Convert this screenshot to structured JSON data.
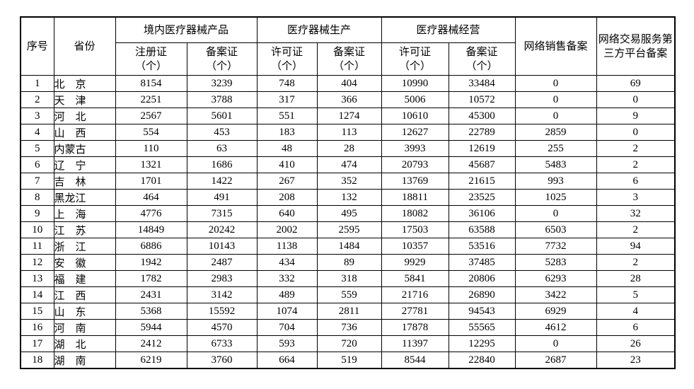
{
  "colors": {
    "background": "#ffffff",
    "border": "#000000",
    "text": "#000000"
  },
  "table": {
    "header": {
      "no": "序号",
      "province": "省份",
      "groups": [
        "境内医疗器械产品",
        "医疗器械生产",
        "医疗器械经营"
      ],
      "sub": [
        "注册证\n（个）",
        "备案证\n（个）",
        "许可证\n（个）",
        "备案证\n（个）",
        "许可证\n（个）",
        "备案证\n（个）"
      ],
      "net_sales": "网络销售备案",
      "net_platform": "网络交易服务第三方平台备案"
    },
    "rows": [
      {
        "no": "1",
        "province": "北　京",
        "values": [
          "8154",
          "3239",
          "748",
          "404",
          "10990",
          "33484",
          "0",
          "69"
        ]
      },
      {
        "no": "2",
        "province": "天　津",
        "values": [
          "2251",
          "3788",
          "317",
          "366",
          "5006",
          "10572",
          "0",
          "0"
        ]
      },
      {
        "no": "3",
        "province": "河　北",
        "values": [
          "2567",
          "5601",
          "551",
          "1274",
          "10610",
          "45300",
          "0",
          "9"
        ]
      },
      {
        "no": "4",
        "province": "山　西",
        "values": [
          "554",
          "453",
          "183",
          "113",
          "12627",
          "22789",
          "2859",
          "0"
        ]
      },
      {
        "no": "5",
        "province": "内蒙古",
        "values": [
          "110",
          "63",
          "48",
          "28",
          "3993",
          "12619",
          "255",
          "2"
        ]
      },
      {
        "no": "6",
        "province": "辽　宁",
        "values": [
          "1321",
          "1686",
          "410",
          "474",
          "20793",
          "45687",
          "5483",
          "2"
        ]
      },
      {
        "no": "7",
        "province": "吉　林",
        "values": [
          "1701",
          "1422",
          "267",
          "352",
          "13769",
          "21615",
          "993",
          "6"
        ]
      },
      {
        "no": "8",
        "province": "黑龙江",
        "values": [
          "464",
          "491",
          "208",
          "132",
          "18811",
          "23525",
          "1025",
          "3"
        ]
      },
      {
        "no": "9",
        "province": "上　海",
        "values": [
          "4776",
          "7315",
          "640",
          "495",
          "18082",
          "36106",
          "0",
          "32"
        ]
      },
      {
        "no": "10",
        "province": "江　苏",
        "values": [
          "14849",
          "20242",
          "2002",
          "2595",
          "17503",
          "63588",
          "6503",
          "2"
        ]
      },
      {
        "no": "11",
        "province": "浙　江",
        "values": [
          "6886",
          "10143",
          "1138",
          "1484",
          "10357",
          "53516",
          "7732",
          "94"
        ]
      },
      {
        "no": "12",
        "province": "安　徽",
        "values": [
          "1942",
          "2487",
          "434",
          "89",
          "9929",
          "37485",
          "5283",
          "2"
        ]
      },
      {
        "no": "13",
        "province": "福　建",
        "values": [
          "1782",
          "2983",
          "332",
          "318",
          "5841",
          "20806",
          "6293",
          "28"
        ]
      },
      {
        "no": "14",
        "province": "江　西",
        "values": [
          "2431",
          "3142",
          "489",
          "559",
          "21716",
          "26890",
          "3422",
          "5"
        ]
      },
      {
        "no": "15",
        "province": "山　东",
        "values": [
          "5368",
          "15592",
          "1074",
          "2811",
          "27781",
          "94543",
          "6929",
          "4"
        ]
      },
      {
        "no": "16",
        "province": "河　南",
        "values": [
          "5944",
          "4570",
          "704",
          "736",
          "17878",
          "55565",
          "4612",
          "6"
        ]
      },
      {
        "no": "17",
        "province": "湖　北",
        "values": [
          "2412",
          "6733",
          "593",
          "720",
          "11397",
          "12295",
          "0",
          "26"
        ]
      },
      {
        "no": "18",
        "province": "湖　南",
        "values": [
          "6219",
          "3760",
          "664",
          "519",
          "8544",
          "22840",
          "2687",
          "23"
        ]
      }
    ]
  }
}
